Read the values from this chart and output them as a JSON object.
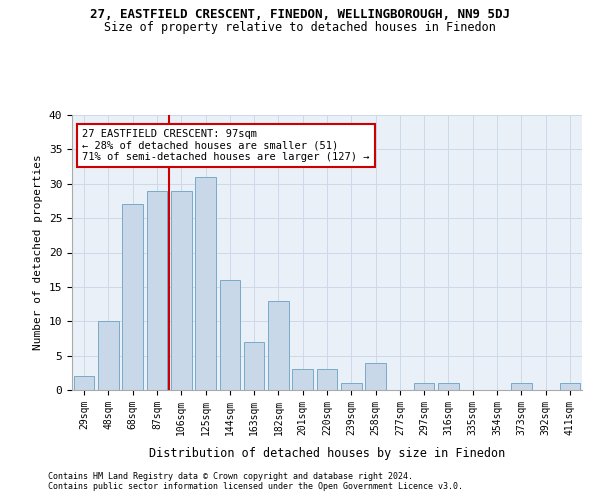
{
  "title1": "27, EASTFIELD CRESCENT, FINEDON, WELLINGBOROUGH, NN9 5DJ",
  "title2": "Size of property relative to detached houses in Finedon",
  "xlabel": "Distribution of detached houses by size in Finedon",
  "ylabel": "Number of detached properties",
  "categories": [
    "29sqm",
    "48sqm",
    "68sqm",
    "87sqm",
    "106sqm",
    "125sqm",
    "144sqm",
    "163sqm",
    "182sqm",
    "201sqm",
    "220sqm",
    "239sqm",
    "258sqm",
    "277sqm",
    "297sqm",
    "316sqm",
    "335sqm",
    "354sqm",
    "373sqm",
    "392sqm",
    "411sqm"
  ],
  "values": [
    2,
    10,
    27,
    29,
    29,
    31,
    16,
    7,
    13,
    3,
    3,
    1,
    4,
    0,
    1,
    1,
    0,
    0,
    1,
    0,
    1
  ],
  "bar_color": "#c8d8e8",
  "bar_edge_color": "#7aaac8",
  "annotation_text": "27 EASTFIELD CRESCENT: 97sqm\n← 28% of detached houses are smaller (51)\n71% of semi-detached houses are larger (127) →",
  "vline_x": 3.5,
  "vline_color": "#cc0000",
  "annotation_box_edge": "#cc0000",
  "ylim": [
    0,
    40
  ],
  "yticks": [
    0,
    5,
    10,
    15,
    20,
    25,
    30,
    35,
    40
  ],
  "footer1": "Contains HM Land Registry data © Crown copyright and database right 2024.",
  "footer2": "Contains public sector information licensed under the Open Government Licence v3.0.",
  "background_color": "#ffffff",
  "plot_bg_color": "#eaf0f8",
  "grid_color": "#cdd8e8"
}
